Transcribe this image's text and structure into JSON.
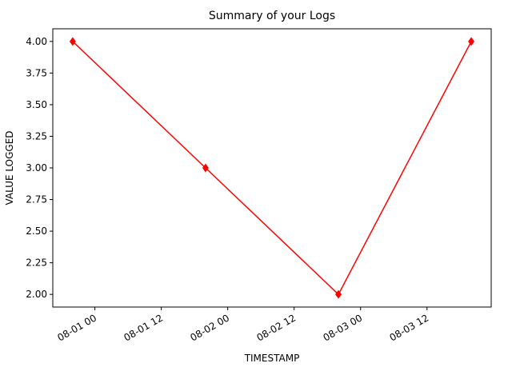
{
  "chart_data": {
    "type": "line",
    "title": "Summary of your Logs",
    "x_label": "TIMESTAMP",
    "y_label": "VALUE LOGGED",
    "x": [
      "07-31 20:00",
      "08-01 20:00",
      "08-02 20:00",
      "08-03 20:00"
    ],
    "series": [
      {
        "color": "#ff0000",
        "marker": "D",
        "values": [
          4,
          3,
          2,
          4
        ]
      }
    ],
    "xlim": [
      "07-31 16:24",
      "08-03 23:36"
    ],
    "xticks": [
      {
        "value": "08-01 00:00",
        "label": "08-01 00"
      },
      {
        "value": "08-01 12:00",
        "label": "08-01 12"
      },
      {
        "value": "08-02 00:00",
        "label": "08-02 00"
      },
      {
        "value": "08-02 12:00",
        "label": "08-02 12"
      },
      {
        "value": "08-03 00:00",
        "label": "08-03 00"
      },
      {
        "value": "08-03 12:00",
        "label": "08-03 12"
      }
    ],
    "ylim": [
      1.9,
      4.1
    ],
    "yticks": [
      {
        "value": 2,
        "label": "2.00"
      },
      {
        "value": 2.25,
        "label": "2.25"
      },
      {
        "value": 2.5,
        "label": "2.50"
      },
      {
        "value": 2.75,
        "label": "2.75"
      },
      {
        "value": 3,
        "label": "3.00"
      },
      {
        "value": 3.25,
        "label": "3.25"
      },
      {
        "value": 3.5,
        "label": "3.50"
      },
      {
        "value": 3.75,
        "label": "3.75"
      },
      {
        "value": 4,
        "label": "4.00"
      }
    ]
  }
}
